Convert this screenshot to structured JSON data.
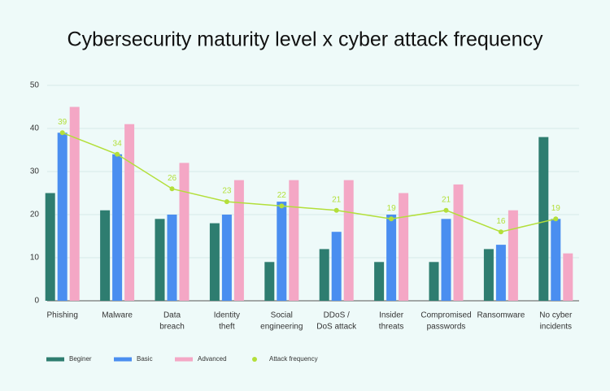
{
  "chart_data": {
    "type": "bar",
    "title": "Cybersecurity maturity level x cyber attack frequency",
    "categories": [
      [
        "Phishing"
      ],
      [
        "Malware"
      ],
      [
        "Data",
        "breach"
      ],
      [
        "Identity",
        "theft"
      ],
      [
        "Social",
        "engineering"
      ],
      [
        "DDoS /",
        "DoS attack"
      ],
      [
        "Insider",
        "threats"
      ],
      [
        "Compromised",
        "passwords"
      ],
      [
        "Ransomware"
      ],
      [
        "No cyber",
        "incidents"
      ]
    ],
    "series": [
      {
        "name": "Beginer",
        "color": "#2e7d70",
        "values": [
          25,
          21,
          19,
          18,
          9,
          12,
          9,
          9,
          12,
          38
        ]
      },
      {
        "name": "Basic",
        "color": "#4a8ef0",
        "values": [
          39,
          34,
          20,
          20,
          23,
          16,
          20,
          19,
          13,
          19
        ]
      },
      {
        "name": "Advanced",
        "color": "#f4a7c5",
        "values": [
          45,
          41,
          32,
          28,
          28,
          28,
          25,
          27,
          21,
          11
        ]
      },
      {
        "name": "Attack frequency",
        "type": "line",
        "color": "#b3df3a",
        "values": [
          39,
          34,
          26,
          23,
          22,
          21,
          19,
          21,
          16,
          19
        ]
      }
    ],
    "ylim": [
      0,
      50
    ],
    "yticks": [
      0,
      10,
      20,
      30,
      40,
      50
    ],
    "grid": true,
    "legend": "bottom"
  }
}
